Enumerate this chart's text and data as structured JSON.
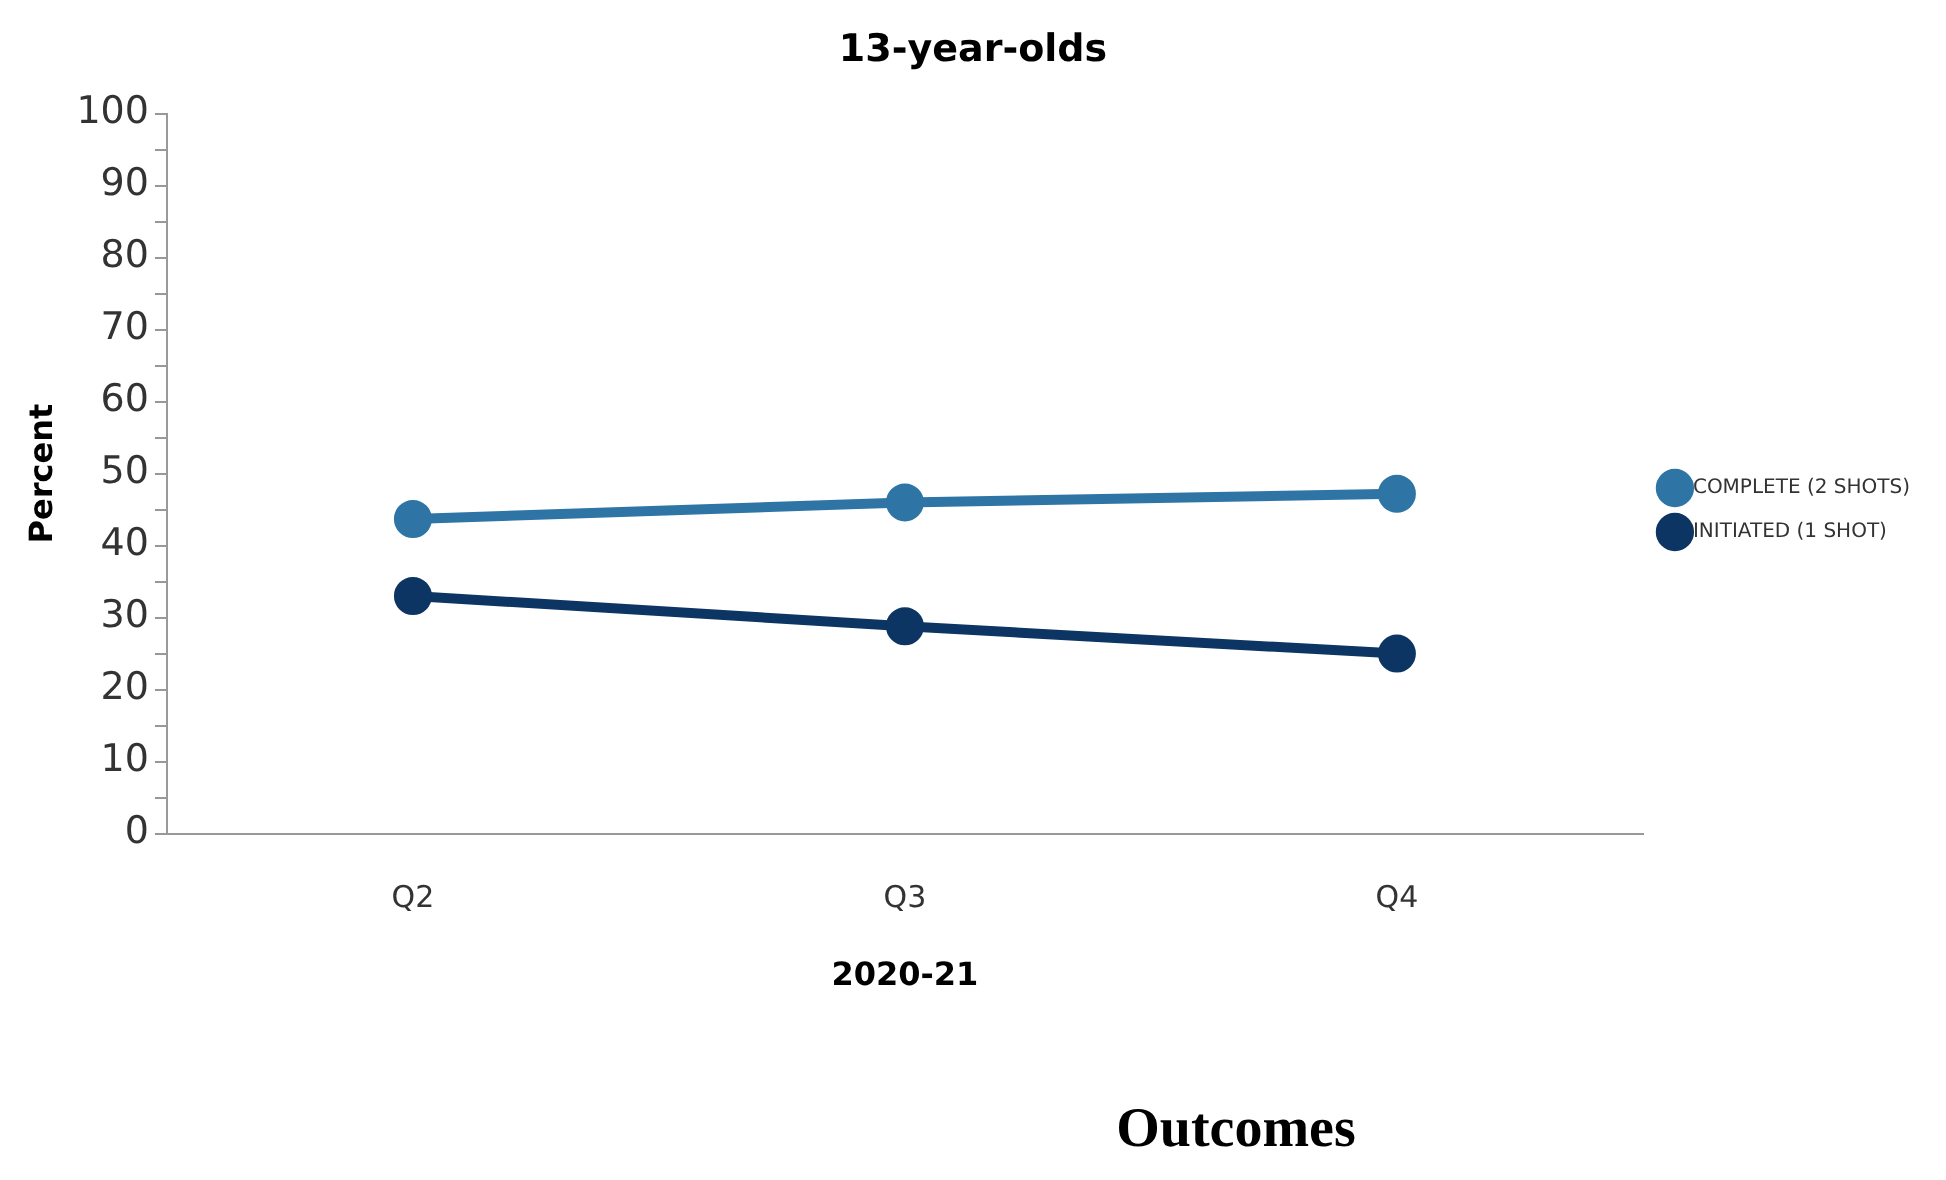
{
  "chart_data": {
    "type": "line",
    "title": "13-year-olds",
    "xlabel": "2020-21",
    "ylabel": "Percent",
    "annotations": [
      "Outcomes"
    ],
    "categories": [
      "Q2",
      "Q3",
      "Q4"
    ],
    "series": [
      {
        "name": "COMPLETE (2 SHOTS)",
        "color": "#2e75a6",
        "values": [
          43.7,
          46.0,
          47.2
        ]
      },
      {
        "name": "INITIATED (1 SHOT)",
        "color": "#0d3563",
        "values": [
          33.0,
          28.8,
          25.0
        ]
      }
    ],
    "ylim": [
      0,
      100
    ],
    "yticks": [
      0,
      {
        "value": 5,
        "label": null
      },
      10,
      {
        "value": 15,
        "label": null
      },
      20,
      {
        "value": 25,
        "label": null
      },
      30,
      {
        "value": 35,
        "label": null
      },
      40,
      {
        "value": 45,
        "label": null
      },
      50,
      {
        "value": 55,
        "label": null
      },
      60,
      {
        "value": 65,
        "label": null
      },
      70,
      {
        "value": 75,
        "label": null
      },
      80,
      {
        "value": 85,
        "label": null
      },
      90,
      {
        "value": 95,
        "label": null
      },
      100
    ],
    "grid": false,
    "legend": "right",
    "marker": "circle",
    "line_style": "solid"
  }
}
